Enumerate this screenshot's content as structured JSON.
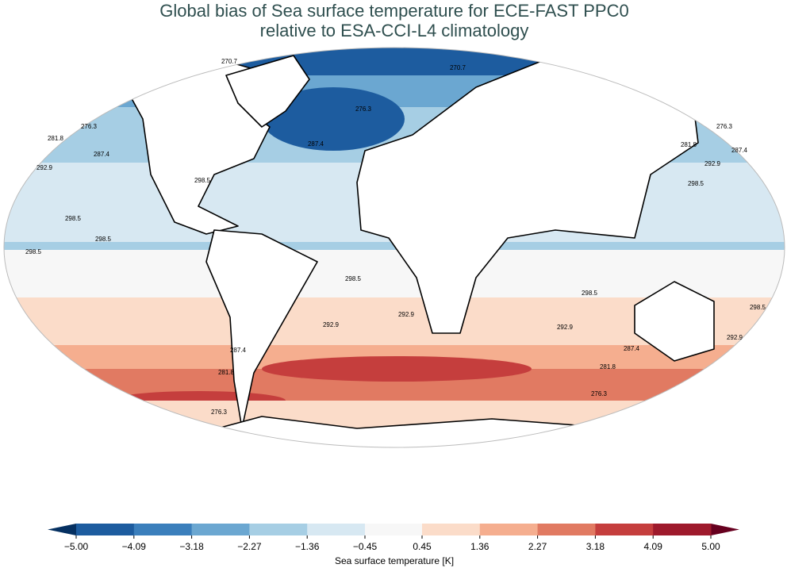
{
  "map": {
    "title_lines": [
      "Global bias of Sea surface temperature for ECE-FAST PPC0",
      "relative to ESA-CCI-L4 climatology"
    ],
    "contour_labels": [
      "270.7",
      "270.7",
      "276.3",
      "276.3",
      "281.8",
      "287.4",
      "292.9",
      "298.5",
      "298.5",
      "298.5",
      "298.5",
      "276.3",
      "287.4",
      "281.8",
      "287.4",
      "292.9",
      "298.5",
      "298.5",
      "292.9",
      "292.9",
      "287.4",
      "281.8",
      "276.3",
      "298.5",
      "292.9",
      "287.4",
      "281.8",
      "276.3",
      "298.5",
      "292.9"
    ],
    "colorbar": {
      "label": "Sea surface temperature [K]",
      "ticks": [
        {
          "value": -5.0,
          "label": "−5.00"
        },
        {
          "value": -4.09,
          "label": "−4.09"
        },
        {
          "value": -3.18,
          "label": "−3.18"
        },
        {
          "value": -2.27,
          "label": "−2.27"
        },
        {
          "value": -1.36,
          "label": "−1.36"
        },
        {
          "value": -0.45,
          "label": "−0.45"
        },
        {
          "value": 0.45,
          "label": "0.45"
        },
        {
          "value": 1.36,
          "label": "1.36"
        },
        {
          "value": 2.27,
          "label": "2.27"
        },
        {
          "value": 3.18,
          "label": "3.18"
        },
        {
          "value": 4.09,
          "label": "4.09"
        },
        {
          "value": 5.0,
          "label": "5.00"
        }
      ],
      "colors": [
        "#1d5c9f",
        "#3b7fbc",
        "#6ba7d1",
        "#a6cee4",
        "#d7e8f2",
        "#f7f7f7",
        "#fbdcc9",
        "#f5ae8f",
        "#e17a62",
        "#c53e3d",
        "#9e1a2c"
      ],
      "extend_low": "#053061",
      "extend_high": "#67001f"
    }
  }
}
